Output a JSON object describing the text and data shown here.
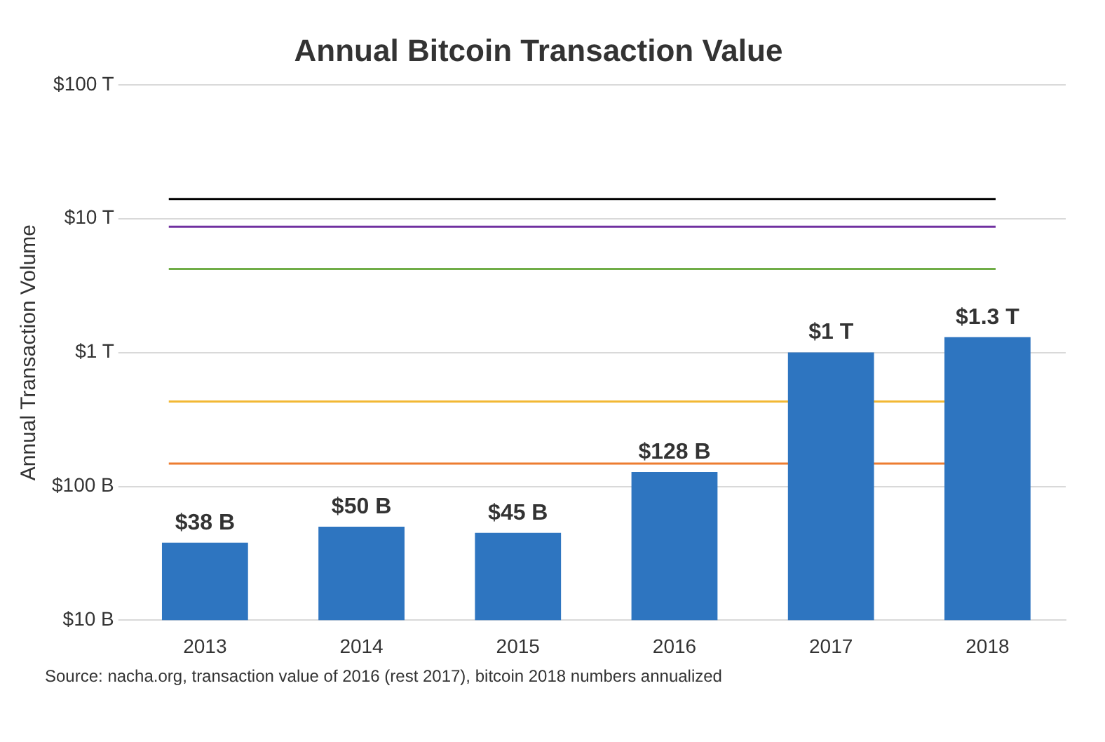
{
  "chart_data": {
    "type": "bar",
    "title": "Annual Bitcoin Transaction Value",
    "ylabel": "Annual Transaction Volume",
    "categories": [
      "2013",
      "2014",
      "2015",
      "2016",
      "2017",
      "2018"
    ],
    "values": [
      38000000000,
      50000000000,
      45000000000,
      128000000000,
      1000000000000,
      1300000000000
    ],
    "value_labels": [
      "$38 B",
      "$50 B",
      "$45 B",
      "$128 B",
      "$1 T",
      "$1.3 T"
    ],
    "color": "#2e75c0",
    "log": true,
    "ylim": [
      10000000000,
      100000000000000
    ],
    "yticks": [
      {
        "value": 10000000000,
        "label": "$10 B"
      },
      {
        "value": 100000000000,
        "label": "$100 B"
      },
      {
        "value": 1000000000000,
        "label": "$1 T"
      },
      {
        "value": 10000000000000,
        "label": "$10 T"
      },
      {
        "value": 100000000000000,
        "label": "$100 T"
      }
    ],
    "grid": "y",
    "legend": false,
    "ref_lines": [
      {
        "axis": "y",
        "value": 14000000000000,
        "color": "#000000"
      },
      {
        "axis": "y",
        "value": 8700000000000,
        "color": "#7030a0"
      },
      {
        "axis": "y",
        "value": 4200000000000,
        "color": "#70ad47"
      },
      {
        "axis": "y",
        "value": 430000000000,
        "color": "#f2b834"
      },
      {
        "axis": "y",
        "value": 148000000000,
        "color": "#ed7d31"
      }
    ],
    "annotations": [
      "Source: nacha.org, transaction value of 2016 (rest 2017), bitcoin 2018 numbers annualized"
    ]
  }
}
